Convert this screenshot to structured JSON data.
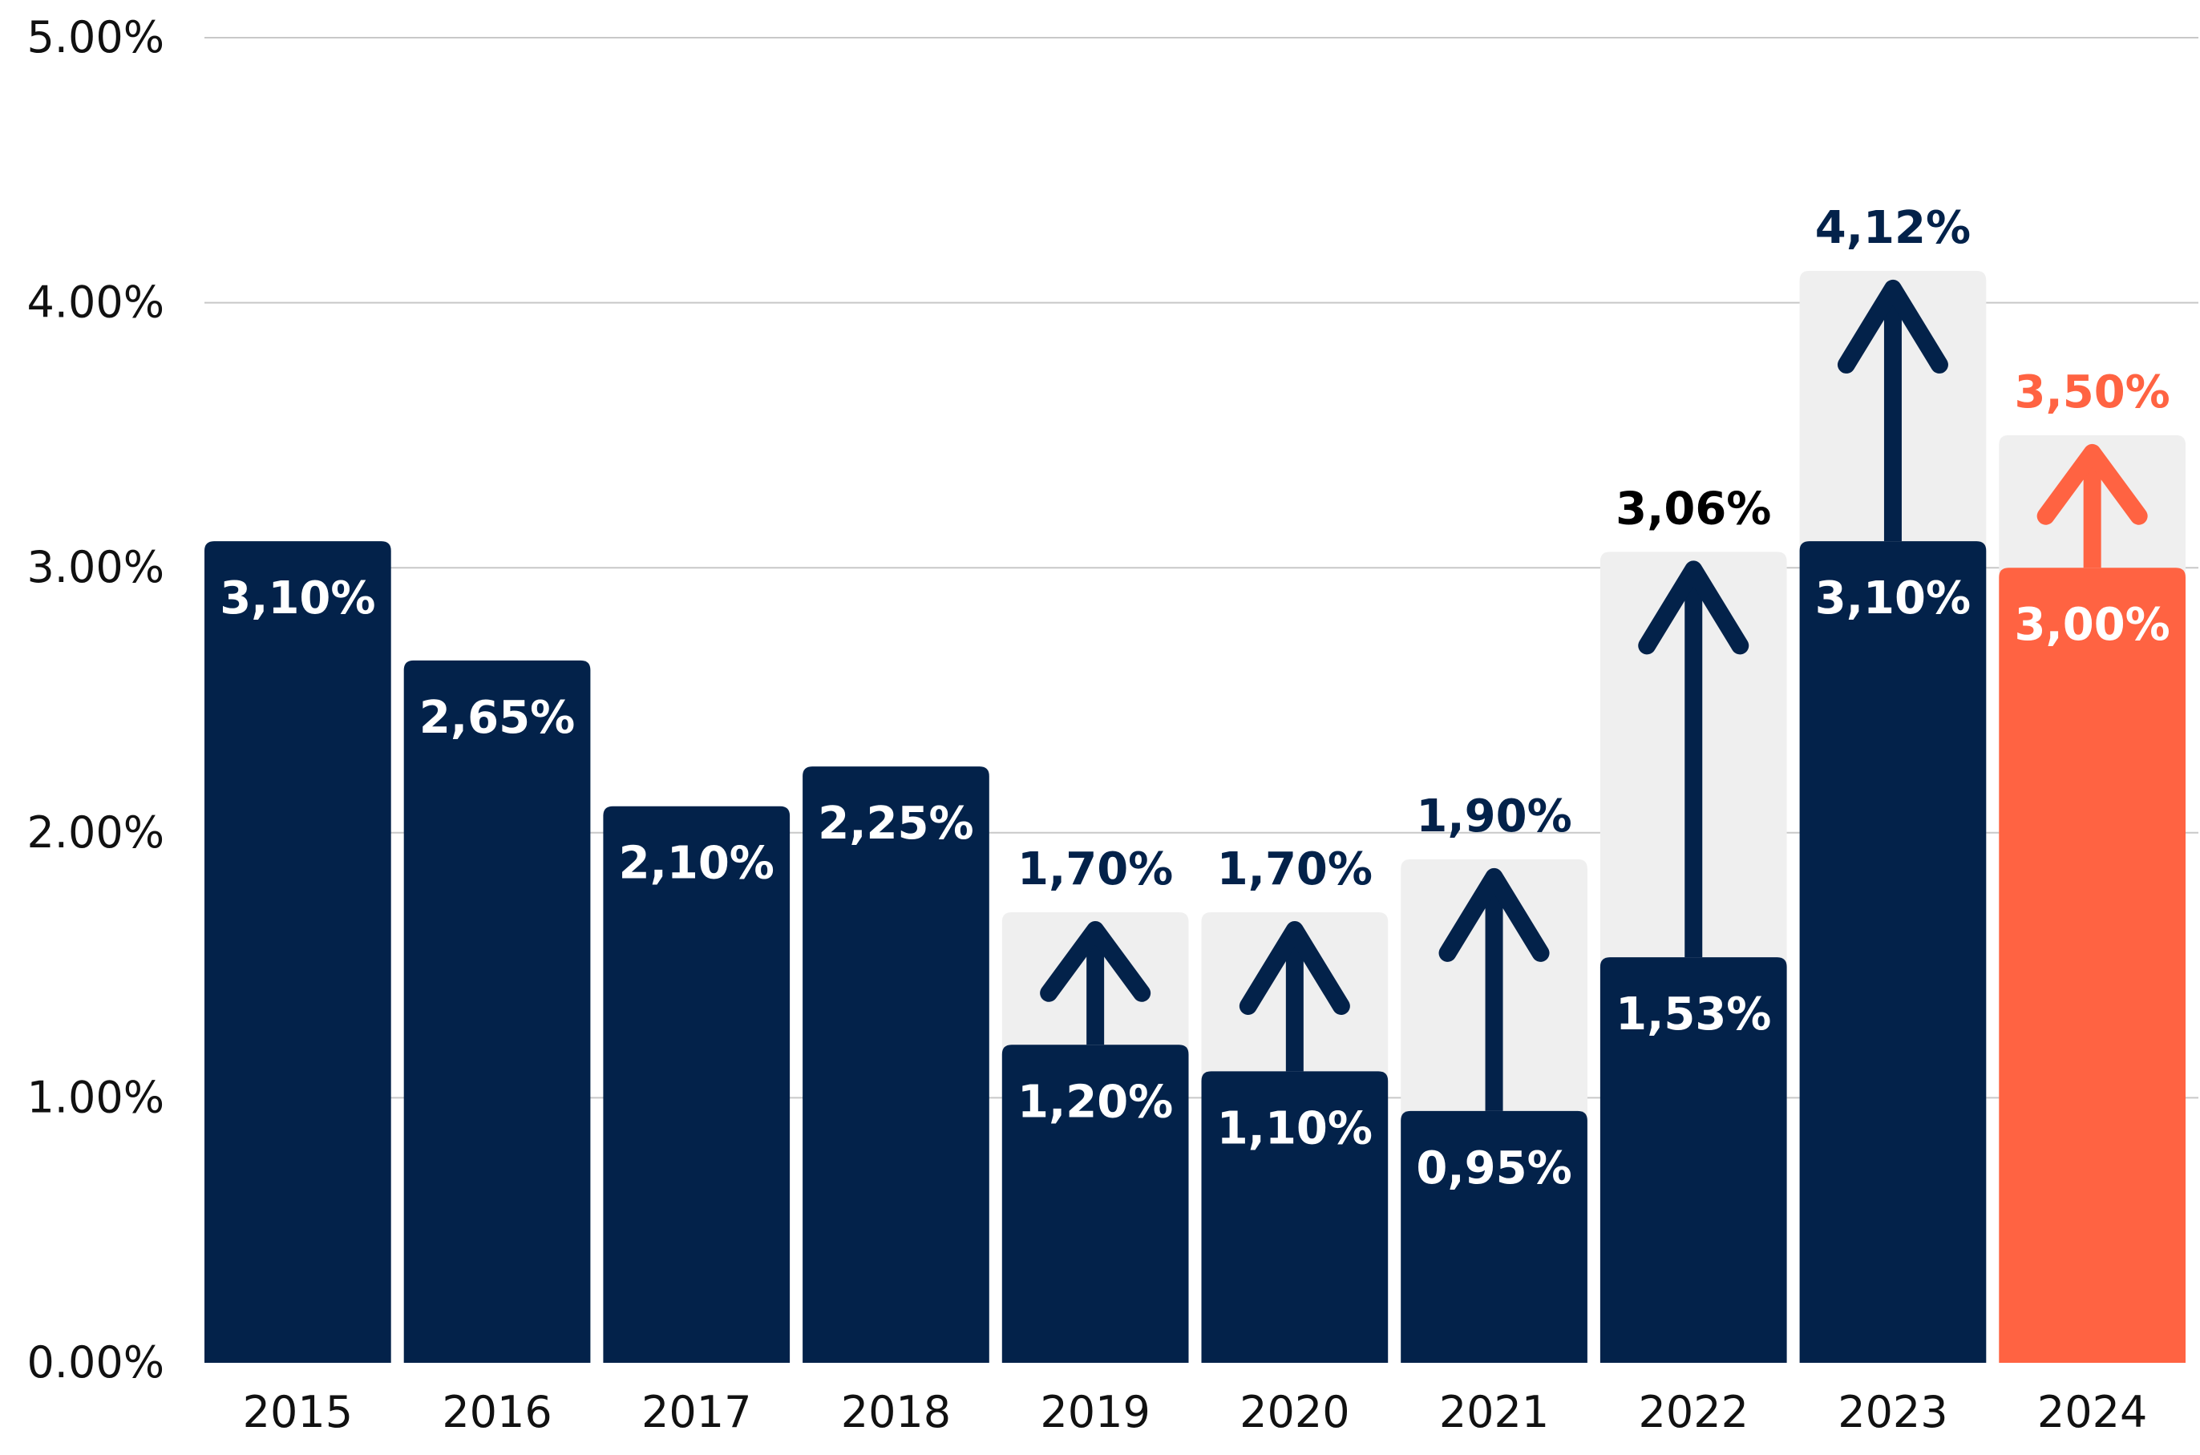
{
  "chart_data": {
    "type": "bar",
    "categories": [
      "2015",
      "2016",
      "2017",
      "2018",
      "2019",
      "2020",
      "2021",
      "2022",
      "2023",
      "2024"
    ],
    "series": [
      {
        "values": [
          3.1,
          2.65,
          2.1,
          2.25,
          1.2,
          1.1,
          0.95,
          1.53,
          3.1,
          3.0
        ]
      },
      {
        "values": [
          null,
          null,
          null,
          null,
          1.7,
          1.7,
          1.9,
          3.06,
          4.12,
          3.5
        ]
      }
    ],
    "base_labels": [
      "3,10%",
      "2,65%",
      "2,10%",
      "2,25%",
      "1,20%",
      "1,10%",
      "0,95%",
      "1,53%",
      "3,10%",
      "3,00%"
    ],
    "target_labels": [
      "",
      "",
      "",
      "",
      "1,70%",
      "1,70%",
      "1,90%",
      "3,06%",
      "4,12%",
      "3,50%"
    ],
    "y_ticks": [
      0,
      1,
      2,
      3,
      4,
      5
    ],
    "y_tick_labels": [
      "0.00%",
      "1.00%",
      "2.00%",
      "3.00%",
      "4.00%",
      "5.00%"
    ],
    "ylim": [
      0,
      5
    ],
    "grid": true,
    "title": "",
    "xlabel": "",
    "ylabel": "",
    "colors": {
      "bar": "#03224a",
      "highlight": "#ff6342",
      "target_bg": "#efefef",
      "grid": "#c8c8c8",
      "target_label_normal": "#03224a",
      "target_label_2022": "#000000",
      "target_label_highlight": "#ff6342",
      "label_inside": "#ffffff"
    },
    "highlight_category": "2024"
  }
}
